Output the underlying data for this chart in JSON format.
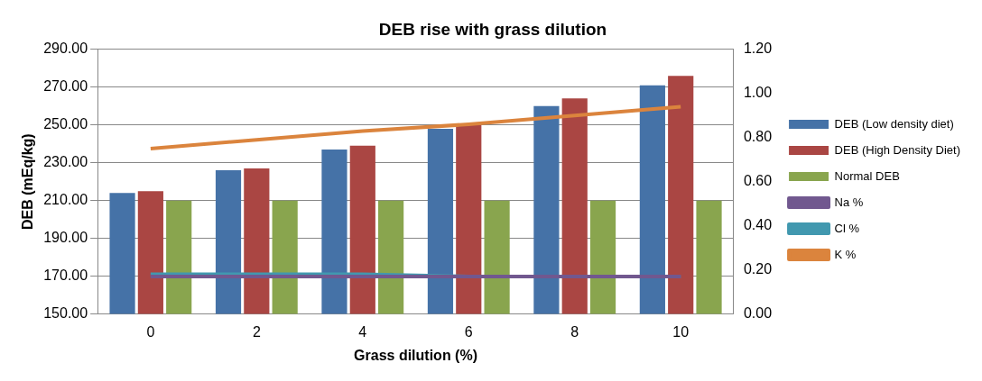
{
  "chart_data": {
    "type": "bar",
    "title": "DEB rise with grass dilution",
    "xlabel": "Grass dilution (%)",
    "ylabel": "DEB (mEq/kg)",
    "categories": [
      "0",
      "2",
      "4",
      "6",
      "8",
      "10"
    ],
    "series": [
      {
        "name": "DEB (Low density diet)",
        "color": "#4572a7",
        "values": [
          214,
          226,
          237,
          248,
          260,
          271
        ]
      },
      {
        "name": "DEB (High Density Diet)",
        "color": "#aa4643",
        "values": [
          215,
          227,
          239,
          250,
          264,
          276
        ]
      },
      {
        "name": "Normal DEB",
        "color": "#89a54e",
        "values": [
          210,
          210,
          210,
          210,
          210,
          210
        ]
      },
      {
        "name": "Na %",
        "type": "line",
        "axis": "y2",
        "color": "#71588f",
        "values": [
          0.17,
          0.17,
          0.17,
          0.17,
          0.17,
          0.17
        ]
      },
      {
        "name": "Cl %",
        "type": "line",
        "axis": "y2",
        "color": "#4198af",
        "values": [
          0.18,
          0.18,
          0.18,
          0.17,
          0.17,
          0.17
        ]
      },
      {
        "name": "K %",
        "type": "line",
        "axis": "y2",
        "color": "#db843d",
        "values": [
          0.75,
          0.79,
          0.83,
          0.86,
          0.9,
          0.94
        ]
      }
    ],
    "ylim": [
      150,
      290
    ],
    "yticks": [
      {
        "value": 150,
        "label": "150.00"
      },
      {
        "value": 170,
        "label": "170.00"
      },
      {
        "value": 190,
        "label": "190.00"
      },
      {
        "value": 210,
        "label": "210.00"
      },
      {
        "value": 230,
        "label": "230.00"
      },
      {
        "value": 250,
        "label": "250.00"
      },
      {
        "value": 270,
        "label": "270.00"
      },
      {
        "value": 290,
        "label": "290.00"
      }
    ],
    "y2lim": [
      0,
      1.2
    ],
    "y2ticks": [
      {
        "value": 0,
        "label": "0.00"
      },
      {
        "value": 0.2,
        "label": "0.20"
      },
      {
        "value": 0.4,
        "label": "0.40"
      },
      {
        "value": 0.6,
        "label": "0.60"
      },
      {
        "value": 0.8,
        "label": "0.80"
      },
      {
        "value": 1,
        "label": "1.00"
      },
      {
        "value": 1.2,
        "label": "1.20"
      }
    ],
    "grid": "y",
    "legend": "right",
    "marker": "none",
    "line_style": "solid"
  }
}
